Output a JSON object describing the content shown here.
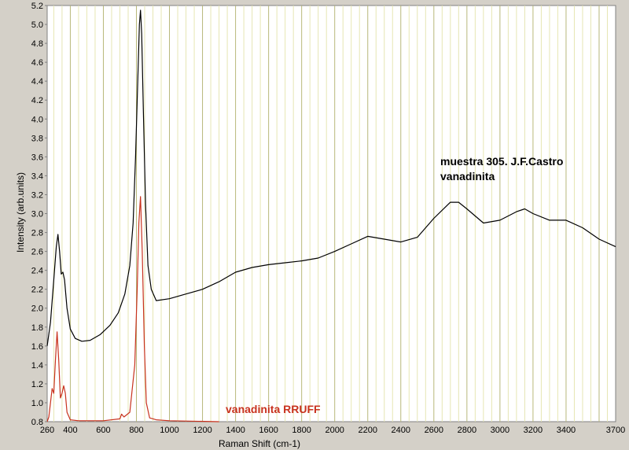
{
  "colors": {
    "frame_bg": "#d4d0c8",
    "plot_bg": "#ffffff",
    "major_grid": "#b8b87a",
    "minor_grid": "#e6e6b3",
    "sample_series": "#000000",
    "reference_series": "#c8321e",
    "reference_label": "#c8321e",
    "text": "#000000"
  },
  "chart_data": {
    "type": "line",
    "title": "",
    "xlabel": "Raman Shift (cm-1)",
    "ylabel": "Intensity (arb.units)",
    "xlim": [
      260,
      3700
    ],
    "ylim": [
      0.8,
      5.2
    ],
    "grid": true,
    "x_ticks": [
      "260",
      "400",
      "600",
      "800",
      "1000",
      "1200",
      "1400",
      "1600",
      "1800",
      "2000",
      "2200",
      "2400",
      "2600",
      "2800",
      "3000",
      "3200",
      "3400",
      "3700"
    ],
    "y_ticks": [
      "0.8",
      "1.0",
      "1.2",
      "1.4",
      "1.6",
      "1.8",
      "2.0",
      "2.2",
      "2.4",
      "2.6",
      "2.8",
      "3.0",
      "3.2",
      "3.4",
      "3.6",
      "3.8",
      "4.0",
      "4.2",
      "4.4",
      "4.6",
      "4.8",
      "5.0",
      "5.2"
    ],
    "annotations": [
      {
        "lines": [
          "muestra 305. J.F.Castro",
          "vanadinita"
        ],
        "color": "#000000"
      },
      {
        "lines": [
          "vanadinita RRUFF"
        ],
        "color": "#c8321e"
      }
    ],
    "series": [
      {
        "color": "#000000",
        "points": [
          [
            260,
            1.6
          ],
          [
            280,
            1.85
          ],
          [
            300,
            2.3
          ],
          [
            315,
            2.65
          ],
          [
            325,
            2.78
          ],
          [
            335,
            2.6
          ],
          [
            345,
            2.36
          ],
          [
            355,
            2.38
          ],
          [
            365,
            2.3
          ],
          [
            380,
            2.0
          ],
          [
            400,
            1.78
          ],
          [
            430,
            1.68
          ],
          [
            470,
            1.65
          ],
          [
            520,
            1.66
          ],
          [
            580,
            1.72
          ],
          [
            640,
            1.82
          ],
          [
            690,
            1.95
          ],
          [
            730,
            2.15
          ],
          [
            760,
            2.45
          ],
          [
            780,
            2.9
          ],
          [
            795,
            3.6
          ],
          [
            808,
            4.4
          ],
          [
            818,
            5.0
          ],
          [
            825,
            5.15
          ],
          [
            832,
            4.9
          ],
          [
            842,
            4.1
          ],
          [
            855,
            3.1
          ],
          [
            870,
            2.45
          ],
          [
            890,
            2.2
          ],
          [
            920,
            2.08
          ],
          [
            1000,
            2.1
          ],
          [
            1100,
            2.15
          ],
          [
            1200,
            2.2
          ],
          [
            1300,
            2.28
          ],
          [
            1400,
            2.38
          ],
          [
            1500,
            2.43
          ],
          [
            1600,
            2.46
          ],
          [
            1700,
            2.48
          ],
          [
            1800,
            2.5
          ],
          [
            1900,
            2.53
          ],
          [
            2000,
            2.6
          ],
          [
            2100,
            2.68
          ],
          [
            2200,
            2.76
          ],
          [
            2300,
            2.73
          ],
          [
            2400,
            2.7
          ],
          [
            2500,
            2.75
          ],
          [
            2600,
            2.95
          ],
          [
            2700,
            3.12
          ],
          [
            2750,
            3.12
          ],
          [
            2800,
            3.05
          ],
          [
            2900,
            2.9
          ],
          [
            3000,
            2.93
          ],
          [
            3100,
            3.02
          ],
          [
            3150,
            3.05
          ],
          [
            3200,
            3.0
          ],
          [
            3300,
            2.93
          ],
          [
            3400,
            2.93
          ],
          [
            3500,
            2.85
          ],
          [
            3600,
            2.73
          ],
          [
            3700,
            2.65
          ]
        ]
      },
      {
        "color": "#c8321e",
        "points": [
          [
            260,
            0.8
          ],
          [
            270,
            0.85
          ],
          [
            280,
            1.0
          ],
          [
            290,
            1.15
          ],
          [
            300,
            1.1
          ],
          [
            310,
            1.45
          ],
          [
            320,
            1.75
          ],
          [
            330,
            1.45
          ],
          [
            340,
            1.05
          ],
          [
            350,
            1.1
          ],
          [
            360,
            1.18
          ],
          [
            370,
            1.1
          ],
          [
            380,
            0.9
          ],
          [
            400,
            0.82
          ],
          [
            450,
            0.81
          ],
          [
            600,
            0.81
          ],
          [
            700,
            0.83
          ],
          [
            710,
            0.88
          ],
          [
            725,
            0.85
          ],
          [
            760,
            0.9
          ],
          [
            790,
            1.4
          ],
          [
            805,
            2.2
          ],
          [
            815,
            2.9
          ],
          [
            825,
            3.18
          ],
          [
            835,
            2.6
          ],
          [
            848,
            1.6
          ],
          [
            860,
            1.0
          ],
          [
            880,
            0.84
          ],
          [
            920,
            0.82
          ],
          [
            1000,
            0.81
          ],
          [
            1300,
            0.8
          ]
        ]
      }
    ]
  }
}
